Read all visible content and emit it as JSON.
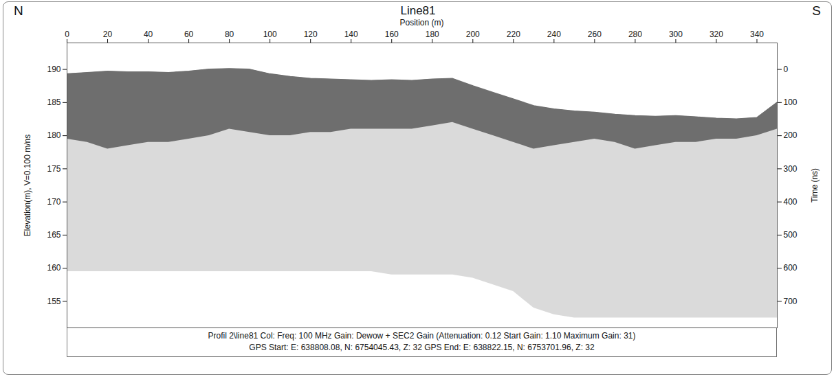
{
  "chart_data": {
    "type": "area",
    "title": "Line81",
    "annotations": [
      "N",
      "S"
    ],
    "x_label": "Position (m)",
    "y_label": "Elevation(m), V=0.100 m/ns",
    "y2_label": "Time (ns)",
    "caption": [
      "Profil 2\\line81  Col:  Freq: 100 MHz Gain: Dewow + SEC2 Gain (Attenuation: 0.12 Start Gain: 1.10 Maximum Gain: 31)",
      "GPS Start: E: 638808.08, N: 6754045.43, Z: 32 GPS End: E: 638822.15, N: 6753701.96, Z: 32"
    ],
    "x": [
      0,
      10,
      20,
      30,
      40,
      50,
      60,
      70,
      80,
      90,
      100,
      110,
      120,
      130,
      140,
      150,
      160,
      170,
      180,
      190,
      200,
      210,
      220,
      230,
      240,
      250,
      260,
      270,
      280,
      290,
      300,
      310,
      320,
      330,
      340,
      350
    ],
    "series": [
      {
        "type": "line",
        "color": "#6f6f6f",
        "values": [
          189.3,
          189.5,
          189.7,
          189.6,
          189.6,
          189.5,
          189.7,
          190.0,
          190.1,
          190.0,
          189.3,
          188.9,
          188.6,
          188.5,
          188.4,
          188.3,
          188.4,
          188.3,
          188.5,
          188.6,
          187.5,
          186.5,
          185.5,
          184.5,
          184.0,
          183.7,
          183.5,
          183.2,
          183.0,
          182.9,
          183.0,
          182.8,
          182.6,
          182.5,
          182.7,
          185.0
        ]
      },
      {
        "type": "area",
        "color": "#5a5a5a",
        "values": [
          179.5,
          179.0,
          178.0,
          178.5,
          179.0,
          179.0,
          179.5,
          180.0,
          181.0,
          180.5,
          180.0,
          180.0,
          180.5,
          180.5,
          181.0,
          181.0,
          181.0,
          181.0,
          181.5,
          182.0,
          181.0,
          180.0,
          179.0,
          178.0,
          178.5,
          179.0,
          179.5,
          179.0,
          178.0,
          178.5,
          179.0,
          179.0,
          179.5,
          179.5,
          180.0,
          181.0
        ]
      },
      {
        "type": "area",
        "color": "#d4d4d4",
        "values": [
          159.5,
          159.5,
          159.5,
          159.5,
          159.5,
          159.5,
          159.5,
          159.5,
          159.5,
          159.5,
          159.5,
          159.5,
          159.5,
          159.5,
          159.5,
          159.5,
          159.0,
          159.0,
          159.0,
          159.0,
          158.5,
          157.5,
          156.5,
          154.0,
          153.0,
          152.5,
          152.5,
          152.5,
          152.5,
          152.5,
          152.5,
          152.5,
          152.5,
          152.5,
          152.5,
          152.5
        ]
      }
    ],
    "xlim": [
      0,
      350
    ],
    "xticks": [
      0,
      20,
      40,
      60,
      80,
      100,
      120,
      140,
      160,
      180,
      200,
      220,
      240,
      260,
      280,
      300,
      320,
      340
    ],
    "ylim": [
      151,
      194
    ],
    "yticks": [
      155,
      160,
      165,
      170,
      175,
      180,
      185,
      190
    ],
    "y2lim": [
      -80,
      780
    ],
    "y2ticks": [
      0,
      100,
      200,
      300,
      400,
      500,
      600,
      700
    ],
    "grid": false
  }
}
